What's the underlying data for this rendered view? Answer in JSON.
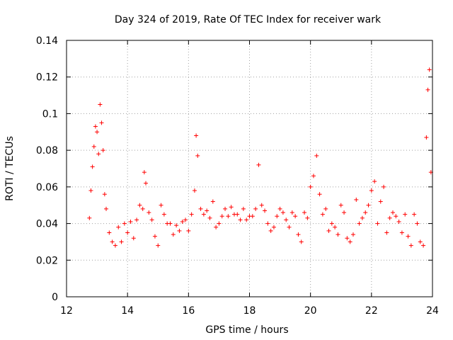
{
  "chart_data": {
    "type": "scatter",
    "title": "Day 324 of 2019, Rate Of TEC Index for receiver wark",
    "xlabel": "GPS time / hours",
    "ylabel": "ROTI / TECUs",
    "xlim": [
      12,
      24
    ],
    "ylim": [
      0,
      0.14
    ],
    "xticks": [
      "12",
      "14",
      "16",
      "18",
      "20",
      "22",
      "24"
    ],
    "yticks": [
      "0",
      "0.02",
      "0.04",
      "0.06",
      "0.08",
      "0.1",
      "0.12",
      "0.14"
    ],
    "grid": true,
    "marker": "plus",
    "color": "#ff0000",
    "series": [
      {
        "name": "",
        "x": [
          12.75,
          12.8,
          12.85,
          12.9,
          12.95,
          13.0,
          13.05,
          13.1,
          13.15,
          13.2,
          13.25,
          13.3,
          13.4,
          13.5,
          13.6,
          13.7,
          13.8,
          13.9,
          14.0,
          14.1,
          14.2,
          14.3,
          14.4,
          14.5,
          14.55,
          14.6,
          14.7,
          14.8,
          14.9,
          15.0,
          15.1,
          15.2,
          15.3,
          15.4,
          15.5,
          15.6,
          15.7,
          15.8,
          15.9,
          16.0,
          16.1,
          16.2,
          16.25,
          16.3,
          16.4,
          16.5,
          16.6,
          16.7,
          16.8,
          16.9,
          17.0,
          17.1,
          17.2,
          17.3,
          17.4,
          17.5,
          17.6,
          17.7,
          17.8,
          17.9,
          18.0,
          18.1,
          18.2,
          18.3,
          18.4,
          18.5,
          18.6,
          18.7,
          18.8,
          18.9,
          19.0,
          19.1,
          19.2,
          19.3,
          19.4,
          19.5,
          19.6,
          19.7,
          19.8,
          19.9,
          20.0,
          20.1,
          20.2,
          20.3,
          20.4,
          20.5,
          20.6,
          20.7,
          20.8,
          20.9,
          21.0,
          21.1,
          21.2,
          21.3,
          21.4,
          21.5,
          21.6,
          21.7,
          21.8,
          21.9,
          22.0,
          22.1,
          22.2,
          22.3,
          22.4,
          22.5,
          22.6,
          22.7,
          22.8,
          22.9,
          23.0,
          23.1,
          23.2,
          23.3,
          23.4,
          23.5,
          23.6,
          23.7,
          23.8,
          23.85,
          23.9,
          23.95
        ],
        "y": [
          0.043,
          0.058,
          0.071,
          0.082,
          0.093,
          0.09,
          0.078,
          0.105,
          0.095,
          0.08,
          0.056,
          0.048,
          0.035,
          0.03,
          0.028,
          0.038,
          0.03,
          0.04,
          0.035,
          0.041,
          0.032,
          0.042,
          0.05,
          0.048,
          0.068,
          0.062,
          0.046,
          0.042,
          0.033,
          0.028,
          0.05,
          0.045,
          0.04,
          0.04,
          0.034,
          0.039,
          0.036,
          0.041,
          0.042,
          0.036,
          0.045,
          0.058,
          0.088,
          0.077,
          0.048,
          0.045,
          0.047,
          0.043,
          0.052,
          0.038,
          0.04,
          0.044,
          0.048,
          0.044,
          0.049,
          0.045,
          0.045,
          0.042,
          0.048,
          0.042,
          0.044,
          0.044,
          0.048,
          0.072,
          0.05,
          0.047,
          0.04,
          0.036,
          0.038,
          0.044,
          0.048,
          0.046,
          0.042,
          0.038,
          0.046,
          0.044,
          0.034,
          0.03,
          0.046,
          0.043,
          0.06,
          0.066,
          0.077,
          0.056,
          0.045,
          0.048,
          0.036,
          0.04,
          0.038,
          0.034,
          0.05,
          0.046,
          0.032,
          0.03,
          0.034,
          0.053,
          0.04,
          0.043,
          0.046,
          0.05,
          0.058,
          0.063,
          0.04,
          0.052,
          0.06,
          0.035,
          0.043,
          0.046,
          0.044,
          0.041,
          0.035,
          0.045,
          0.033,
          0.028,
          0.045,
          0.04,
          0.03,
          0.028,
          0.087,
          0.113,
          0.124,
          0.068
        ]
      }
    ]
  }
}
